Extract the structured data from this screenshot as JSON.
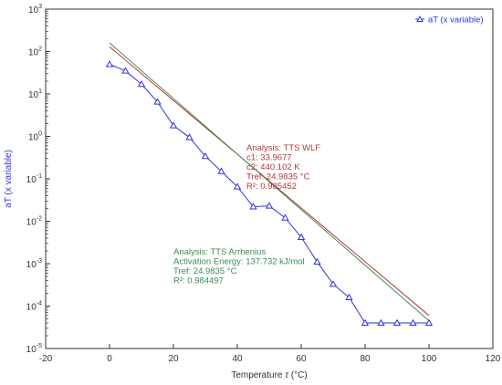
{
  "chart_data": {
    "type": "scatter",
    "xlabel": "Temperature",
    "xlabel_symbol": "τ",
    "xlabel_unit": "(°C)",
    "ylabel": "aT (x variable)",
    "xlim": [
      -20,
      120
    ],
    "ylim": [
      1e-05,
      1000
    ],
    "yscale": "log",
    "x_ticks": [
      -20,
      0,
      20,
      40,
      60,
      80,
      100,
      120
    ],
    "y_tick_labels": [
      {
        "value": 1000,
        "mant": "10",
        "exp": "3"
      },
      {
        "value": 100,
        "mant": "10",
        "exp": "2"
      },
      {
        "value": 10,
        "mant": "10",
        "exp": "1"
      },
      {
        "value": 1,
        "mant": "10",
        "exp": "0"
      },
      {
        "value": 0.1,
        "mant": "10",
        "exp": "-1"
      },
      {
        "value": 0.01,
        "mant": "10",
        "exp": "-2"
      },
      {
        "value": 0.001,
        "mant": "10",
        "exp": "-3"
      },
      {
        "value": 0.0001,
        "mant": "10",
        "exp": "-4"
      },
      {
        "value": 1e-05,
        "mant": "10",
        "exp": "-5"
      }
    ],
    "grid": false,
    "legend": {
      "position": "top-right",
      "label": "aT (x variable)"
    },
    "series": [
      {
        "name": "aT (x variable)",
        "color": "#3333dd",
        "marker": "triangle",
        "x": [
          0,
          5,
          10,
          15,
          20,
          25,
          30,
          35,
          40,
          45,
          50,
          55,
          60,
          65,
          70,
          75,
          80,
          85,
          90,
          95,
          100
        ],
        "y": [
          50,
          35,
          17,
          6.5,
          1.8,
          0.95,
          0.34,
          0.15,
          0.065,
          0.022,
          0.023,
          0.012,
          0.0042,
          0.0011,
          0.00033,
          0.00016,
          4e-05,
          4e-05,
          4e-05,
          4e-05,
          4e-05
        ]
      }
    ],
    "fit_lines": [
      {
        "color": "#b03a3a",
        "x": [
          0,
          100
        ],
        "y": [
          130,
          6e-05
        ]
      },
      {
        "color": "#4a8a5a",
        "x": [
          0,
          100
        ],
        "y": [
          160,
          4.5e-05
        ]
      }
    ],
    "annotations": [
      {
        "color": "#b03a3a",
        "lines": [
          "Analysis: TTS WLF",
          "c1: 33.9677",
          "c2: 440.102 K",
          "Tref: 24.9835 °C",
          "R²: 0.985452"
        ]
      },
      {
        "color": "#3a8a55",
        "lines": [
          "Analysis: TTS Arrhenius",
          "Activation Energy: 137.732 kJ/mol",
          "Tref: 24.9835 °C",
          "R²: 0.984497"
        ]
      }
    ],
    "colors": {
      "axis": "#333333",
      "ylabel": "#3333dd"
    }
  }
}
